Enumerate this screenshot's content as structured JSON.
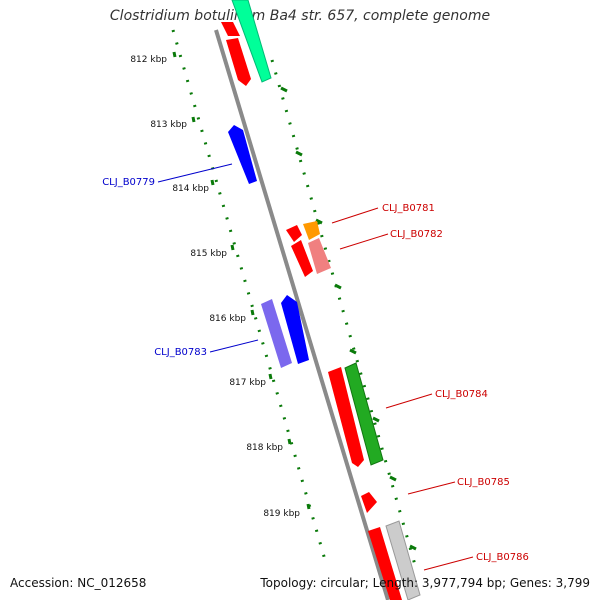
{
  "title": "Clostridium botulinum Ba4 str. 657, complete genome",
  "footer": {
    "accession": "Accession: NC_012658",
    "topology": "Topology: circular; Length: 3,977,794 bp; Genes: 3,799"
  },
  "scale": {
    "ticks": [
      "812 kbp",
      "813 kbp",
      "814 kbp",
      "815 kbp",
      "816 kbp",
      "817 kbp",
      "818 kbp",
      "819 kbp"
    ]
  },
  "gene_labels": {
    "reverse": [
      "CLJ_B0779",
      "CLJ_B0783"
    ],
    "forward": [
      "CLJ_B0781",
      "CLJ_B0782",
      "CLJ_B0784",
      "CLJ_B0785",
      "CLJ_B0786"
    ]
  },
  "colors": {
    "backbone": "#8a8a8a",
    "tick_green": "#0a7a0a",
    "label_blue": "#0000cc",
    "label_red": "#cc0000",
    "feature_red": "#ff0000",
    "feature_blue": "#0000ff",
    "feature_slate": "#7b68ee",
    "feature_mint": "#00ff99",
    "feature_green": "#22aa22",
    "feature_orange": "#ff9900",
    "feature_pink": "#f08080",
    "feature_gray": "#bbbbbb"
  }
}
